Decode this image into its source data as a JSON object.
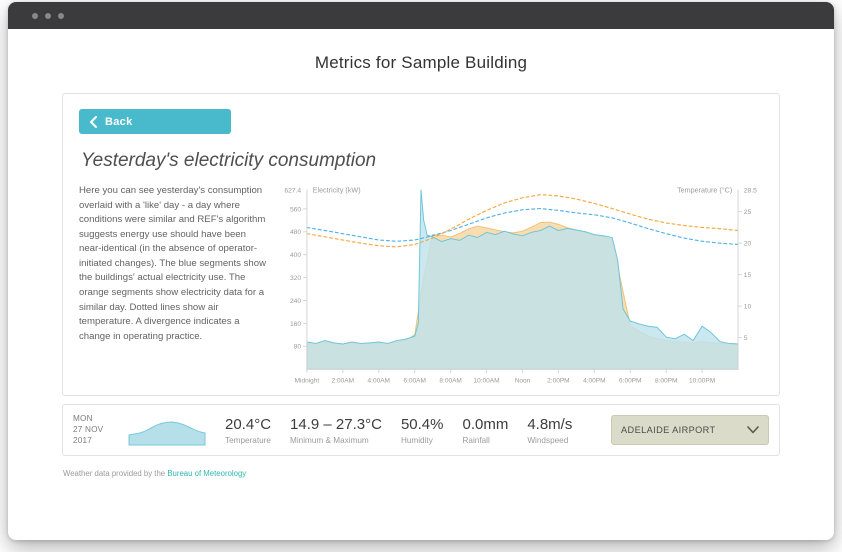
{
  "page": {
    "title": "Metrics for Sample Building"
  },
  "panel": {
    "back_label": "Back",
    "heading": "Yesterday's electricity consumption",
    "description": "Here you can see yesterday's consumption overlaid with a 'like' day - a day where conditions were similar and REF's algorithm suggests energy use should have been near-identical (in the absence of operator-initiated changes). The blue segments show the buildings' actual electricity use. The orange segments show electricity data for a similar day. Dotted lines show air temperature. A divergence indicates a change in operating practice."
  },
  "chart_data": {
    "type": "area",
    "title": "Yesterday's electricity consumption",
    "x_unit": "hour",
    "x_range": [
      0,
      24
    ],
    "x_tick_hours": [
      0,
      2,
      4,
      6,
      8,
      10,
      12,
      14,
      16,
      18,
      20,
      22
    ],
    "x_tick_labels": [
      "Midnight",
      "2:00AM",
      "4:00AM",
      "6:00AM",
      "8:00AM",
      "10:00AM",
      "Noon",
      "2:00PM",
      "4:00PM",
      "6:00PM",
      "8:00PM",
      "10:00PM"
    ],
    "y_left": {
      "label": "Electricity (kW)",
      "max": 627.4,
      "max_label": "627.4",
      "ticks": [
        80,
        160,
        240,
        320,
        400,
        480,
        560
      ]
    },
    "y_right": {
      "label": "Temperature (°C)",
      "max": 28.5,
      "max_label": "28.5",
      "ticks": [
        5,
        10,
        15,
        20,
        25
      ]
    },
    "legend": "off",
    "grid": "off",
    "series": [
      {
        "name": "electricity-similar-day",
        "kind": "area",
        "axis": "left",
        "fill": "#f7d9a8",
        "fill_opacity": 0.9,
        "stroke": "#f0bf76",
        "x": [
          0,
          0.5,
          1,
          1.5,
          2,
          2.5,
          3,
          3.5,
          4,
          4.5,
          5,
          5.5,
          6,
          6.5,
          7,
          7.5,
          8,
          8.5,
          9,
          9.5,
          10,
          10.5,
          11,
          11.5,
          12,
          12.5,
          13,
          13.5,
          14,
          14.5,
          15,
          15.5,
          16,
          16.5,
          17,
          17.5,
          18,
          18.5,
          19,
          19.5,
          20,
          20.5,
          21,
          21.5,
          22,
          22.5,
          23,
          23.5,
          24
        ],
        "values": [
          92,
          90,
          94,
          90,
          88,
          92,
          90,
          88,
          92,
          90,
          96,
          100,
          120,
          320,
          470,
          468,
          462,
          474,
          490,
          500,
          494,
          486,
          480,
          476,
          482,
          496,
          512,
          514,
          506,
          494,
          486,
          476,
          470,
          462,
          452,
          300,
          152,
          132,
          116,
          106,
          100,
          96,
          94,
          92,
          96,
          92,
          90,
          90,
          88
        ]
      },
      {
        "name": "electricity-actual",
        "kind": "area",
        "axis": "left",
        "fill": "#bfe2ec",
        "fill_opacity": 0.82,
        "stroke": "#6cc5d9",
        "x": [
          0,
          0.5,
          1,
          1.5,
          2,
          2.5,
          3,
          3.5,
          4,
          4.5,
          5,
          5.5,
          6,
          6.2,
          6.35,
          6.5,
          6.7,
          7,
          7.5,
          8,
          8.5,
          9,
          9.5,
          10,
          10.5,
          11,
          11.5,
          12,
          12.5,
          13,
          13.5,
          14,
          14.5,
          15,
          15.5,
          16,
          16.5,
          17,
          17.3,
          17.6,
          18,
          18.5,
          19,
          19.5,
          20,
          20.5,
          21,
          21.5,
          22,
          22.5,
          23,
          23.5,
          24
        ],
        "values": [
          95,
          90,
          100,
          92,
          88,
          95,
          90,
          92,
          95,
          90,
          100,
          105,
          115,
          160,
          627,
          520,
          468,
          462,
          446,
          456,
          450,
          468,
          460,
          478,
          470,
          482,
          472,
          466,
          478,
          484,
          500,
          484,
          492,
          486,
          480,
          470,
          466,
          460,
          380,
          210,
          168,
          158,
          150,
          146,
          112,
          106,
          122,
          100,
          150,
          128,
          96,
          90,
          88
        ]
      },
      {
        "name": "temperature-actual",
        "kind": "dashed-line",
        "axis": "right",
        "stroke": "#4fb3e8",
        "x": [
          0,
          1,
          2,
          3,
          4,
          5,
          6,
          7,
          8,
          9,
          10,
          11,
          12,
          13,
          14,
          15,
          16,
          17,
          18,
          19,
          20,
          21,
          22,
          23,
          24
        ],
        "values": [
          22.5,
          22,
          21.5,
          21,
          20.5,
          20.3,
          20.5,
          21.2,
          22,
          23,
          24,
          24.8,
          25.3,
          25.5,
          25.2,
          24.8,
          24.5,
          24,
          23.2,
          22.3,
          21.5,
          20.8,
          20.3,
          20,
          19.8
        ]
      },
      {
        "name": "temperature-similar-day",
        "kind": "dashed-line",
        "axis": "right",
        "stroke": "#f5a93e",
        "x": [
          0,
          1,
          2,
          3,
          4,
          5,
          6,
          7,
          8,
          9,
          10,
          11,
          12,
          13,
          14,
          15,
          16,
          17,
          18,
          19,
          20,
          21,
          22,
          23,
          24
        ],
        "values": [
          21.5,
          21,
          20.5,
          20,
          19.6,
          19.4,
          19.8,
          20.8,
          22.2,
          23.8,
          25.2,
          26.4,
          27.2,
          27.7,
          27.5,
          27,
          26.3,
          25.5,
          24.6,
          23.8,
          23.2,
          22.8,
          22.5,
          22.3,
          22
        ]
      }
    ],
    "colors": {
      "electricity_actual_fill": "#bfe2ec",
      "electricity_similar_fill": "#f7d9a8",
      "temperature_actual_line": "#4fb3e8",
      "temperature_similar_line": "#f5a93e"
    }
  },
  "weather": {
    "date": {
      "line1": "MON",
      "line2": "27 NOV",
      "line3": "2017"
    },
    "sparkline": {
      "fill": "#b5dfe9",
      "stroke": "#79cadb",
      "values": [
        0.42,
        0.46,
        0.5,
        0.58,
        0.7,
        0.82,
        0.9,
        0.95,
        0.96,
        0.92,
        0.85,
        0.75,
        0.64,
        0.55,
        0.5
      ]
    },
    "metrics": [
      {
        "value": "20.4°C",
        "label": "Temperature"
      },
      {
        "value": "14.9 – 27.3°C",
        "label": "Minimum & Maximum"
      },
      {
        "value": "50.4%",
        "label": "Humidity"
      },
      {
        "value": "0.0mm",
        "label": "Rainfall"
      },
      {
        "value": "4.8m/s",
        "label": "Windspeed"
      }
    ],
    "station": {
      "label": "ADELAIDE AIRPORT"
    }
  },
  "footer": {
    "text": "Weather data provided by the ",
    "link_label": "Bureau of Meteorology"
  },
  "theme": {
    "accent_teal": "#49b9cc",
    "link_teal": "#2fb6ae",
    "titlebar": "#3b3b3d"
  }
}
